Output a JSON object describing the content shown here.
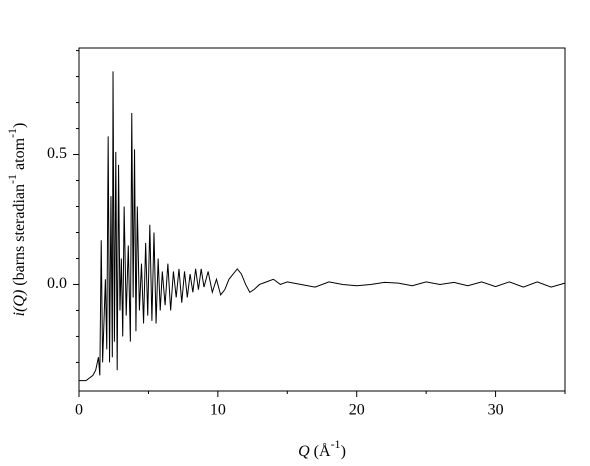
{
  "chart_data": {
    "type": "line",
    "xlabel": [
      {
        "text": "Q",
        "italic": true
      },
      {
        "text": " (Å"
      },
      {
        "text": "-1",
        "sup": true
      },
      {
        "text": ")"
      }
    ],
    "ylabel": [
      {
        "text": "i(Q)",
        "italic": true
      },
      {
        "text": " (barns steradian"
      },
      {
        "text": "-1",
        "sup": true
      },
      {
        "text": " atom"
      },
      {
        "text": "-1",
        "sup": true
      },
      {
        "text": ")"
      }
    ],
    "x": [
      0,
      0.5,
      1.0,
      1.2,
      1.4,
      1.5,
      1.6,
      1.7,
      1.9,
      2.0,
      2.1,
      2.2,
      2.3,
      2.4,
      2.45,
      2.55,
      2.65,
      2.75,
      2.85,
      2.95,
      3.05,
      3.15,
      3.25,
      3.4,
      3.55,
      3.7,
      3.8,
      3.9,
      4.0,
      4.1,
      4.2,
      4.35,
      4.5,
      4.65,
      4.8,
      4.95,
      5.1,
      5.25,
      5.4,
      5.55,
      5.7,
      5.85,
      6.0,
      6.2,
      6.4,
      6.6,
      6.8,
      7.0,
      7.2,
      7.4,
      7.6,
      7.8,
      8.0,
      8.2,
      8.4,
      8.6,
      8.8,
      9.0,
      9.3,
      9.6,
      9.9,
      10.2,
      10.5,
      10.8,
      11.1,
      11.4,
      11.7,
      12.0,
      12.3,
      12.6,
      13.0,
      13.5,
      14.0,
      14.5,
      15,
      16,
      17,
      18,
      19,
      20,
      21,
      22,
      23,
      24,
      25,
      26,
      27,
      28,
      29,
      30,
      31,
      32,
      33,
      34,
      35
    ],
    "series": [
      {
        "color": "#000000",
        "values": [
          -0.37,
          -0.37,
          -0.35,
          -0.33,
          -0.28,
          -0.35,
          0.17,
          -0.3,
          0.02,
          -0.25,
          0.57,
          -0.3,
          0.34,
          -0.28,
          0.82,
          -0.22,
          0.51,
          -0.33,
          0.46,
          -0.1,
          0.1,
          -0.2,
          0.3,
          -0.12,
          0.15,
          -0.22,
          0.66,
          -0.05,
          0.52,
          -0.18,
          0.3,
          -0.1,
          0.08,
          -0.15,
          0.16,
          -0.12,
          0.23,
          -0.14,
          0.2,
          -0.15,
          0.1,
          -0.1,
          0.05,
          -0.08,
          0.08,
          -0.1,
          0.05,
          -0.05,
          0.06,
          -0.07,
          0.05,
          -0.05,
          0.04,
          -0.03,
          0.06,
          -0.02,
          0.06,
          -0.01,
          0.05,
          -0.03,
          0.02,
          -0.04,
          -0.02,
          0.02,
          0.04,
          0.06,
          0.04,
          0.0,
          -0.03,
          -0.02,
          0.0,
          0.01,
          0.02,
          0.0,
          0.01,
          0.0,
          -0.01,
          0.01,
          0.0,
          -0.005,
          0.0,
          0.008,
          0.005,
          -0.005,
          0.01,
          0.0,
          0.008,
          -0.005,
          0.01,
          -0.008,
          0.01,
          -0.01,
          0.01,
          -0.01,
          0.005
        ]
      }
    ],
    "xlim": [
      0,
      35
    ],
    "xticks": [
      0,
      10,
      20,
      30
    ],
    "xminorticks": [
      5,
      15,
      25,
      35
    ],
    "ylim": [
      -0.41,
      0.91
    ],
    "yticks": [
      {
        "value": 0,
        "label": "0.0"
      },
      0.5
    ],
    "yminorticks": [
      -0.3,
      -0.2,
      -0.1,
      0.1,
      0.2,
      0.3,
      0.4,
      0.6,
      0.7,
      0.8,
      0.9
    ],
    "grid": false
  }
}
